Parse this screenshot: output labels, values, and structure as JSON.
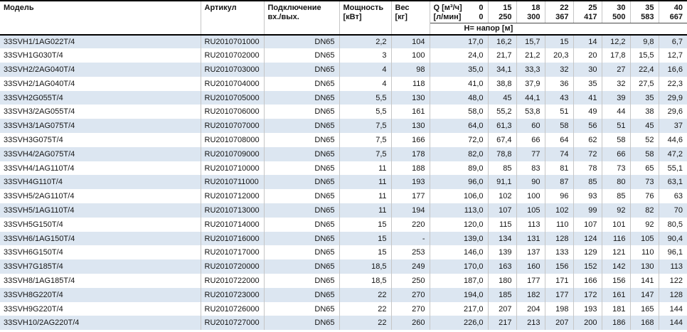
{
  "table": {
    "colors": {
      "band": "#dce6f1",
      "grid": "#c6c6c6",
      "heavy_line": "#000000"
    },
    "headers": {
      "model": "Модель",
      "article": "Артикул",
      "connection_line1": "Подключение",
      "connection_line2": "вх./вых.",
      "power_line1": "Мощность",
      "power_line2": "[кВт]",
      "weight_line1": "Вес",
      "weight_line2": "[кг]",
      "q_label_m3h": "Q [м³/ч]",
      "q_zero_top": "0",
      "q_label_lmin": "[л/мин]",
      "q_zero_bottom": "0",
      "head_row": "Н= напор [м]"
    },
    "flow_headers": [
      {
        "m3h": "15",
        "lmin": "250"
      },
      {
        "m3h": "18",
        "lmin": "300"
      },
      {
        "m3h": "22",
        "lmin": "367"
      },
      {
        "m3h": "25",
        "lmin": "417"
      },
      {
        "m3h": "30",
        "lmin": "500"
      },
      {
        "m3h": "35",
        "lmin": "583"
      },
      {
        "m3h": "40",
        "lmin": "667"
      }
    ],
    "rows": [
      {
        "model": "33SVH1/1AG022T/4",
        "article": "RU2010701000",
        "connection": "DN65",
        "power": "2,2",
        "weight": "104",
        "h": [
          "17,0",
          "16,2",
          "15,7",
          "15",
          "14",
          "12,2",
          "9,8",
          "6,7"
        ]
      },
      {
        "model": "33SVH1G030T/4",
        "article": "RU2010702000",
        "connection": "DN65",
        "power": "3",
        "weight": "100",
        "h": [
          "24,0",
          "21,7",
          "21,2",
          "20,3",
          "20",
          "17,8",
          "15,5",
          "12,7"
        ]
      },
      {
        "model": "33SVH2/2AG040T/4",
        "article": "RU2010703000",
        "connection": "DN65",
        "power": "4",
        "weight": "98",
        "h": [
          "35,0",
          "34,1",
          "33,3",
          "32",
          "30",
          "27",
          "22,4",
          "16,6"
        ]
      },
      {
        "model": "33SVH2/1AG040T/4",
        "article": "RU2010704000",
        "connection": "DN65",
        "power": "4",
        "weight": "118",
        "h": [
          "41,0",
          "38,8",
          "37,9",
          "36",
          "35",
          "32",
          "27,5",
          "22,3"
        ]
      },
      {
        "model": "33SVH2G055T/4",
        "article": "RU2010705000",
        "connection": "DN65",
        "power": "5,5",
        "weight": "130",
        "h": [
          "48,0",
          "45",
          "44,1",
          "43",
          "41",
          "39",
          "35",
          "29,9"
        ]
      },
      {
        "model": "33SVH3/2AG055T/4",
        "article": "RU2010706000",
        "connection": "DN65",
        "power": "5,5",
        "weight": "161",
        "h": [
          "58,0",
          "55,2",
          "53,8",
          "51",
          "49",
          "44",
          "38",
          "29,6"
        ]
      },
      {
        "model": "33SVH3/1AG075T/4",
        "article": "RU2010707000",
        "connection": "DN65",
        "power": "7,5",
        "weight": "130",
        "h": [
          "64,0",
          "61,3",
          "60",
          "58",
          "56",
          "51",
          "45",
          "37"
        ]
      },
      {
        "model": "33SVH3G075T/4",
        "article": "RU2010708000",
        "connection": "DN65",
        "power": "7,5",
        "weight": "166",
        "h": [
          "72,0",
          "67,4",
          "66",
          "64",
          "62",
          "58",
          "52",
          "44,6"
        ]
      },
      {
        "model": "33SVH4/2AG075T/4",
        "article": "RU2010709000",
        "connection": "DN65",
        "power": "7,5",
        "weight": "178",
        "h": [
          "82,0",
          "78,8",
          "77",
          "74",
          "72",
          "66",
          "58",
          "47,2"
        ]
      },
      {
        "model": "33SVH4/1AG110T/4",
        "article": "RU2010710000",
        "connection": "DN65",
        "power": "11",
        "weight": "188",
        "h": [
          "89,0",
          "85",
          "83",
          "81",
          "78",
          "73",
          "65",
          "55,1"
        ]
      },
      {
        "model": "33SVH4G110T/4",
        "article": "RU2010711000",
        "connection": "DN65",
        "power": "11",
        "weight": "193",
        "h": [
          "96,0",
          "91,1",
          "90",
          "87",
          "85",
          "80",
          "73",
          "63,1"
        ]
      },
      {
        "model": "33SVH5/2AG110T/4",
        "article": "RU2010712000",
        "connection": "DN65",
        "power": "11",
        "weight": "177",
        "h": [
          "106,0",
          "102",
          "100",
          "96",
          "93",
          "85",
          "76",
          "63"
        ]
      },
      {
        "model": "33SVH5/1AG110T/4",
        "article": "RU2010713000",
        "connection": "DN65",
        "power": "11",
        "weight": "194",
        "h": [
          "113,0",
          "107",
          "105",
          "102",
          "99",
          "92",
          "82",
          "70"
        ]
      },
      {
        "model": "33SVH5G150T/4",
        "article": "RU2010714000",
        "connection": "DN65",
        "power": "15",
        "weight": "220",
        "h": [
          "120,0",
          "115",
          "113",
          "110",
          "107",
          "101",
          "92",
          "80,5"
        ]
      },
      {
        "model": "33SVH6/1AG150T/4",
        "article": "RU2010716000",
        "connection": "DN65",
        "power": "15",
        "weight": "-",
        "h": [
          "139,0",
          "134",
          "131",
          "128",
          "124",
          "116",
          "105",
          "90,4"
        ]
      },
      {
        "model": "33SVH6G150T/4",
        "article": "RU2010717000",
        "connection": "DN65",
        "power": "15",
        "weight": "253",
        "h": [
          "146,0",
          "139",
          "137",
          "133",
          "129",
          "121",
          "110",
          "96,1"
        ]
      },
      {
        "model": "33SVH7G185T/4",
        "article": "RU2010720000",
        "connection": "DN65",
        "power": "18,5",
        "weight": "249",
        "h": [
          "170,0",
          "163",
          "160",
          "156",
          "152",
          "142",
          "130",
          "113"
        ]
      },
      {
        "model": "33SVH8/1AG185T/4",
        "article": "RU2010722000",
        "connection": "DN65",
        "power": "18,5",
        "weight": "250",
        "h": [
          "187,0",
          "180",
          "177",
          "171",
          "166",
          "156",
          "141",
          "122"
        ]
      },
      {
        "model": "33SVH8G220T/4",
        "article": "RU2010723000",
        "connection": "DN65",
        "power": "22",
        "weight": "270",
        "h": [
          "194,0",
          "185",
          "182",
          "177",
          "172",
          "161",
          "147",
          "128"
        ]
      },
      {
        "model": "33SVH9G220T/4",
        "article": "RU2010726000",
        "connection": "DN65",
        "power": "22",
        "weight": "270",
        "h": [
          "217,0",
          "207",
          "204",
          "198",
          "193",
          "181",
          "165",
          "144"
        ]
      },
      {
        "model": "33SVH10/2AG220T/4",
        "article": "RU2010727000",
        "connection": "DN65",
        "power": "22",
        "weight": "260",
        "h": [
          "226,0",
          "217",
          "213",
          "207",
          "200",
          "186",
          "168",
          "144"
        ]
      }
    ]
  }
}
